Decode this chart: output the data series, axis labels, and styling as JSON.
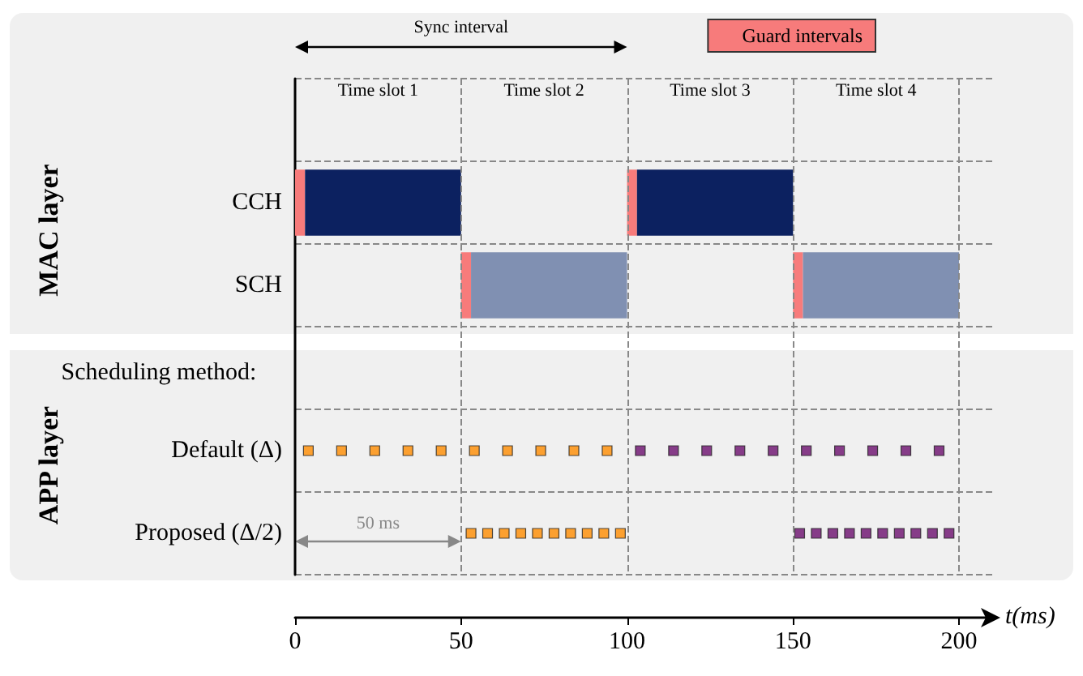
{
  "chart_data": {
    "type": "bar",
    "orientation": "horizontal",
    "xlabel": "t(ms)",
    "categories": [
      null,
      "CCH",
      "SCH",
      null,
      "Default (Δ)",
      "Proposed (Δ/2)"
    ],
    "xlim": [
      0,
      210
    ],
    "xticks": [
      0,
      50,
      100,
      150,
      200
    ],
    "grid": "y",
    "legend": "top right",
    "series": [
      {
        "name": "Guard intervals",
        "color": "#f77b7b",
        "values": [
          null,
          3,
          3,
          null,
          null,
          null
        ],
        "base": [
          null,
          0,
          50,
          null,
          null,
          null
        ]
      },
      {
        "color": "#f77b7b",
        "values": [
          null,
          3,
          3,
          null,
          null,
          null
        ],
        "base": [
          null,
          100,
          150,
          null,
          null,
          null
        ]
      },
      {
        "colors": [
          null,
          "#0c2160",
          "#8090b2",
          null,
          null,
          null
        ],
        "values": [
          null,
          47,
          47,
          null,
          null,
          null
        ],
        "base": [
          null,
          3,
          53,
          null,
          null,
          null
        ]
      },
      {
        "colors": [
          null,
          "#0c2160",
          "#8090b2",
          null,
          null,
          null
        ],
        "values": [
          null,
          47,
          47,
          null,
          null,
          null
        ],
        "base": [
          null,
          103,
          153,
          null,
          null,
          null
        ]
      },
      {
        "type": "scatter",
        "marker": "square",
        "color": "#ff8c00",
        "x": [
          "Default (Δ)",
          "Default (Δ)",
          "Default (Δ)",
          "Default (Δ)",
          "Default (Δ)",
          "Default (Δ)",
          "Default (Δ)",
          "Default (Δ)",
          "Default (Δ)",
          "Default (Δ)"
        ],
        "values": [
          4,
          14,
          24,
          34,
          44,
          54,
          64,
          74,
          84,
          94
        ]
      },
      {
        "type": "scatter",
        "marker": "square",
        "color": "#6b0f6e",
        "x": [
          "Default (Δ)",
          "Default (Δ)",
          "Default (Δ)",
          "Default (Δ)",
          "Default (Δ)",
          "Default (Δ)",
          "Default (Δ)",
          "Default (Δ)",
          "Default (Δ)",
          "Default (Δ)"
        ],
        "values": [
          104,
          114,
          124,
          134,
          144,
          154,
          164,
          174,
          184,
          194
        ]
      },
      {
        "type": "scatter",
        "marker": "square",
        "color": "#ff8c00",
        "x": [
          "Proposed (Δ/2)",
          "Proposed (Δ/2)",
          "Proposed (Δ/2)",
          "Proposed (Δ/2)",
          "Proposed (Δ/2)",
          "Proposed (Δ/2)",
          "Proposed (Δ/2)",
          "Proposed (Δ/2)",
          "Proposed (Δ/2)",
          "Proposed (Δ/2)"
        ],
        "values": [
          53,
          58,
          63,
          68,
          73,
          78,
          83,
          88,
          93,
          98
        ]
      },
      {
        "type": "scatter",
        "marker": "square",
        "color": "#6b0f6e",
        "x": [
          "Proposed (Δ/2)",
          "Proposed (Δ/2)",
          "Proposed (Δ/2)",
          "Proposed (Δ/2)",
          "Proposed (Δ/2)",
          "Proposed (Δ/2)",
          "Proposed (Δ/2)",
          "Proposed (Δ/2)",
          "Proposed (Δ/2)",
          "Proposed (Δ/2)"
        ],
        "values": [
          152,
          157,
          162,
          167,
          172,
          177,
          182,
          187,
          192,
          197
        ]
      }
    ],
    "ref_lines": [
      {
        "axis": "x",
        "value": 50,
        "color": "#888888",
        "line_style": "dashed"
      },
      {
        "axis": "x",
        "value": 100,
        "color": "#888888",
        "line_style": "dashed"
      },
      {
        "axis": "x",
        "value": 150,
        "color": "#888888",
        "line_style": "dashed"
      },
      {
        "axis": "x",
        "value": 200,
        "color": "#888888",
        "line_style": "dashed"
      }
    ],
    "annotations": [
      "Sync interval",
      "MAC layer",
      "Scheduling method:",
      "APP layer",
      "50 ms",
      "Time slot 1",
      "Time slot 2",
      "Time slot 3",
      "Time slot 4"
    ]
  }
}
